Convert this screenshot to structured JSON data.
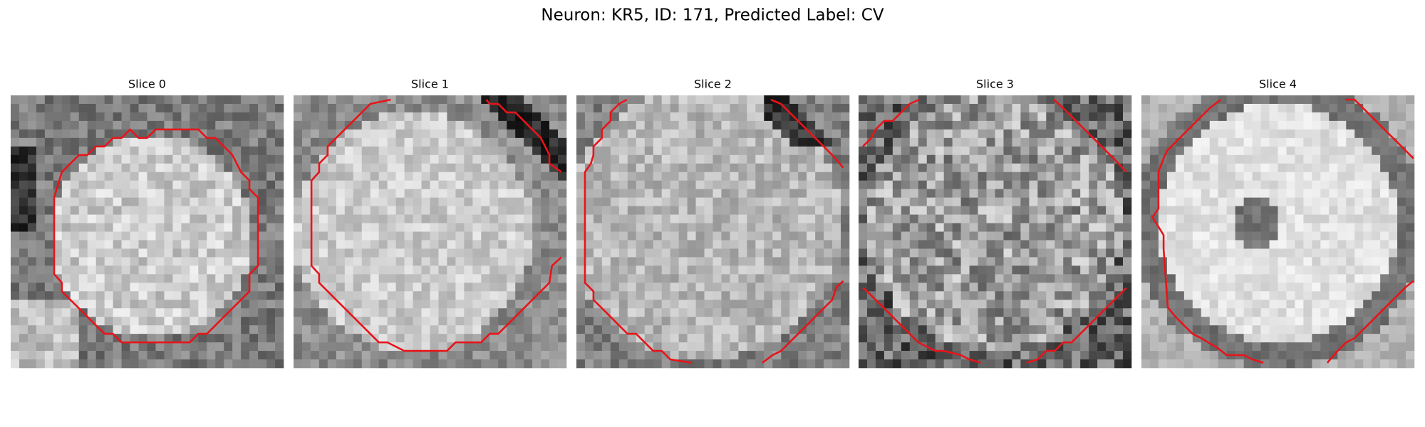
{
  "title": "Neuron: KR5, ID: 171, Predicted Label: CV",
  "panels": [
    {
      "title": "Slice 0"
    },
    {
      "title": "Slice 1"
    },
    {
      "title": "Slice 2"
    },
    {
      "title": "Slice 3"
    },
    {
      "title": "Slice 4"
    }
  ]
}
